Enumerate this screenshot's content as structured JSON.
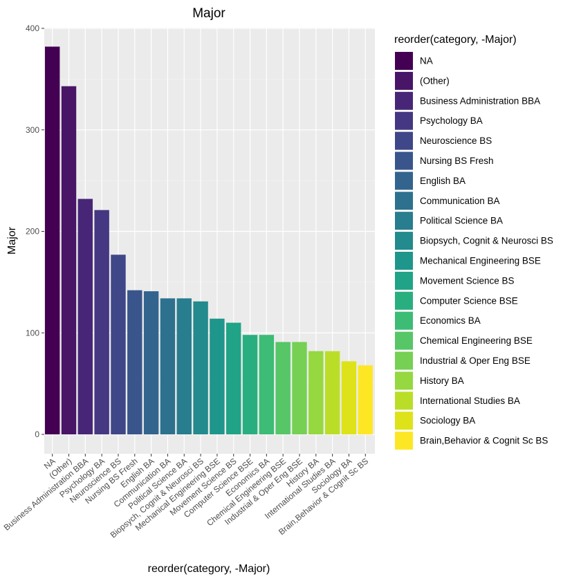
{
  "chart_data": {
    "type": "bar",
    "title": "Major",
    "xlabel": "reorder(category, -Major)",
    "ylabel": "Major",
    "ylim": [
      0,
      400
    ],
    "yticks": [
      0,
      100,
      200,
      300,
      400
    ],
    "legend_title": "reorder(category, -Major)",
    "legend_position": "right",
    "grid": true,
    "categories": [
      "NA",
      "(Other)",
      "Business Administration BBA",
      "Psychology BA",
      "Neuroscience BS",
      "Nursing BS Fresh",
      "English BA",
      "Communication BA",
      "Political Science BA",
      "Biopsych, Cognit & Neurosci BS",
      "Mechanical Engineering BSE",
      "Movement Science BS",
      "Computer Science BSE",
      "Economics BA",
      "Chemical Engineering BSE",
      "Industrial & Oper Eng BSE",
      "History BA",
      "International Studies BA",
      "Sociology BA",
      "Brain,Behavior & Cognit Sc BS"
    ],
    "values": [
      382,
      343,
      232,
      221,
      177,
      142,
      141,
      134,
      134,
      131,
      114,
      110,
      98,
      98,
      91,
      91,
      82,
      82,
      72,
      68
    ],
    "colors": [
      "#440154",
      "#481567",
      "#482677",
      "#453781",
      "#3F4788",
      "#39558C",
      "#32648E",
      "#2D718E",
      "#287D8E",
      "#238A8D",
      "#1F968B",
      "#20A386",
      "#29AF7F",
      "#3CBC75",
      "#56C667",
      "#75D054",
      "#95D840",
      "#BADE28",
      "#DDE318",
      "#FDE725"
    ]
  }
}
